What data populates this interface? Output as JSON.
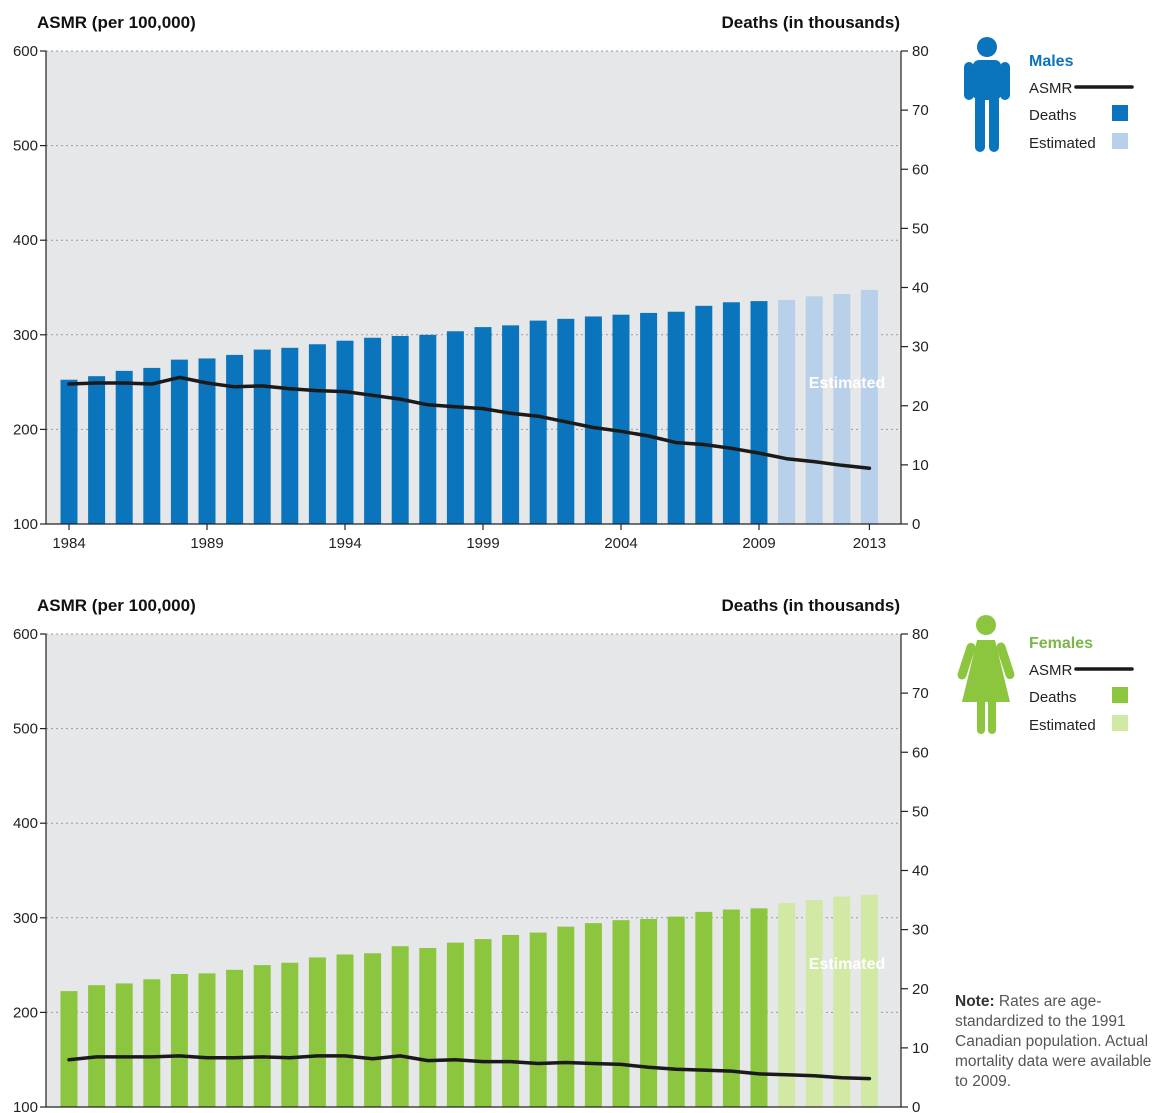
{
  "note": {
    "label": "Note:",
    "text": "Rates are age-standardized to the 1991 Canadian population. Actual mortality data were available to 2009."
  },
  "chart_data": [
    {
      "type": "bar",
      "group": "Males",
      "left_axis_title": "ASMR (per 100,000)",
      "right_axis_title": "Deaths (in thousands)",
      "left_ylim": [
        100,
        600
      ],
      "left_ticks": [
        100,
        200,
        300,
        400,
        500,
        600
      ],
      "right_ylim": [
        0,
        80
      ],
      "right_ticks": [
        0,
        10,
        20,
        30,
        40,
        50,
        60,
        70,
        80
      ],
      "x_tick_labels": [
        "1984",
        "1989",
        "1994",
        "1999",
        "2004",
        "2009",
        "2013"
      ],
      "years": [
        1984,
        1985,
        1986,
        1987,
        1988,
        1989,
        1990,
        1991,
        1992,
        1993,
        1994,
        1995,
        1996,
        1997,
        1998,
        1999,
        2000,
        2001,
        2002,
        2003,
        2004,
        2005,
        2006,
        2007,
        2008,
        2009,
        2010,
        2011,
        2012,
        2013
      ],
      "deaths": [
        24.4,
        25.0,
        25.9,
        26.4,
        27.8,
        28.0,
        28.6,
        29.5,
        29.8,
        30.4,
        31.0,
        31.5,
        31.8,
        32.0,
        32.6,
        33.3,
        33.6,
        34.4,
        34.7,
        35.1,
        35.4,
        35.7,
        35.9,
        36.9,
        37.5,
        37.7,
        37.9,
        38.5,
        38.9,
        39.6
      ],
      "estimated_from": 2010,
      "asmr": [
        248,
        249,
        249,
        248,
        255,
        249,
        245,
        246,
        243,
        241,
        240,
        236,
        232,
        226,
        224,
        222,
        217,
        214,
        208,
        202,
        198,
        193,
        186,
        184,
        180,
        175,
        169,
        166,
        162,
        159
      ],
      "grid": "horizontal dotted",
      "annotation": "Estimated",
      "legend": {
        "title": "Males",
        "items": [
          "ASMR",
          "Deaths",
          "Estimated"
        ],
        "position": "top-right",
        "colors": {
          "bar": "#0a74bd",
          "estimated": "#b8d0ea",
          "line": "#1a1a1a",
          "title": "#0a74bd"
        },
        "icon": "male-person-icon"
      }
    },
    {
      "type": "bar",
      "group": "Females",
      "left_axis_title": "ASMR (per 100,000)",
      "right_axis_title": "Deaths (in thousands)",
      "left_ylim": [
        100,
        600
      ],
      "left_ticks": [
        100,
        200,
        300,
        400,
        500,
        600
      ],
      "right_ylim": [
        0,
        80
      ],
      "right_ticks": [
        0,
        10,
        20,
        30,
        40,
        50,
        60,
        70,
        80
      ],
      "years": [
        1984,
        1985,
        1986,
        1987,
        1988,
        1989,
        1990,
        1991,
        1992,
        1993,
        1994,
        1995,
        1996,
        1997,
        1998,
        1999,
        2000,
        2001,
        2002,
        2003,
        2004,
        2005,
        2006,
        2007,
        2008,
        2009,
        2010,
        2011,
        2012,
        2013
      ],
      "deaths": [
        19.6,
        20.6,
        20.9,
        21.6,
        22.5,
        22.6,
        23.2,
        24.0,
        24.4,
        25.3,
        25.8,
        26.0,
        27.2,
        26.9,
        27.8,
        28.4,
        29.1,
        29.5,
        30.5,
        31.1,
        31.6,
        31.8,
        32.2,
        33.0,
        33.4,
        33.6,
        34.5,
        35.0,
        35.6,
        35.9
      ],
      "estimated_from": 2010,
      "asmr": [
        150,
        153,
        153,
        153,
        154,
        152,
        152,
        153,
        152,
        154,
        154,
        151,
        154,
        149,
        150,
        148,
        148,
        146,
        147,
        146,
        145,
        142,
        140,
        139,
        138,
        135,
        134,
        133,
        131,
        130
      ],
      "grid": "horizontal dotted",
      "annotation": "Estimated",
      "legend": {
        "title": "Females",
        "items": [
          "ASMR",
          "Deaths",
          "Estimated"
        ],
        "position": "top-right",
        "colors": {
          "bar": "#8cc63f",
          "estimated": "#d2e9a6",
          "line": "#1a1a1a",
          "title": "#7ab648"
        },
        "icon": "female-person-icon"
      }
    }
  ]
}
